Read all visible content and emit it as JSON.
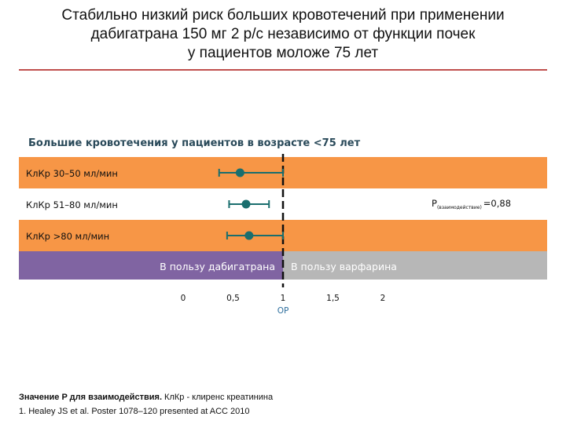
{
  "title_lines": [
    "Стабильно  низкий риск больших кровотечений при применении",
    "дабигатрана 150 мг 2 р/с независимо от функции почек",
    "у пациентов моложе 75 лет"
  ],
  "subtitle": "Большие кровотечения у пациентов в возрасте <75 лет",
  "footnote": {
    "bold": "Значение P для взаимодействия.",
    "rest": " КлКр - клиренс креатинина",
    "ref": "1. Healey JS et al. Poster 1078–120 presented at ACC 2010"
  },
  "colors": {
    "orange": "#f79646",
    "white_band": "#ffffff",
    "purple": "#8064a2",
    "grey": "#b7b7b7",
    "marker": "#1a6e6e",
    "rule": "#c0504d"
  },
  "chart_data": {
    "type": "forest",
    "xlabel": "ОР",
    "xlim": [
      0,
      2
    ],
    "x_ticks": [
      "0",
      "0,5",
      "1",
      "1,5",
      "2"
    ],
    "x_tick_values": [
      0,
      0.5,
      1,
      1.5,
      2
    ],
    "reference_line": 1,
    "rows": [
      {
        "label": "КлКр 30–50 мл/мин",
        "estimate": 0.57,
        "ci_low": 0.36,
        "ci_high": 1.0
      },
      {
        "label": "КлКр 51–80 мл/мин",
        "estimate": 0.63,
        "ci_low": 0.46,
        "ci_high": 0.86
      },
      {
        "label": "КлКр >80 мл/мин",
        "estimate": 0.66,
        "ci_low": 0.44,
        "ci_high": 1.0
      }
    ],
    "p_value": {
      "prefix": "P",
      "subscript": "(взаимодействие)",
      "value": "=0,88"
    },
    "favours_left": "В пользу дабигатрана",
    "favours_right": "В пользу варфарина"
  }
}
